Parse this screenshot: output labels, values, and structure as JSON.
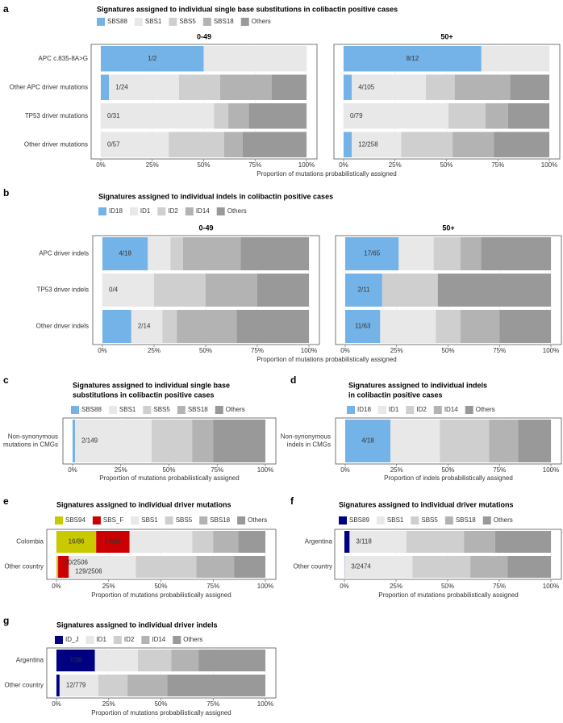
{
  "chart_data": [
    {
      "panel_label": "a",
      "type": "bar",
      "orientation": "horizontal",
      "stacked": true,
      "title": "Signatures assigned to individual single base substitutions in colibactin positive cases",
      "series": [
        {
          "name": "SBS88",
          "color": "#74b3e8"
        },
        {
          "name": "SBS1",
          "color": "#e8e8e8"
        },
        {
          "name": "SBS5",
          "color": "#cfcfcf"
        },
        {
          "name": "SBS18",
          "color": "#b3b3b3"
        },
        {
          "name": "Others",
          "color": "#999999"
        }
      ],
      "categories": [
        "APC c.835-8A>G",
        "Other APC driver mutations",
        "TP53 driver mutations",
        "Other driver mutations"
      ],
      "facets": [
        {
          "title": "0-49",
          "values": [
            [
              50,
              4,
              0,
              0
            ],
            [
              50,
              34,
              55,
              33
            ],
            [
              0,
              20,
              7,
              27
            ],
            [
              0,
              25,
              10,
              9
            ],
            [
              0,
              17,
              28,
              31
            ]
          ],
          "labels": [
            "1/2",
            "1/24",
            "0/31",
            "0/57"
          ]
        },
        {
          "title": "50+",
          "values": [
            [
              67,
              4,
              0,
              4
            ],
            [
              33,
              36,
              51,
              24
            ],
            [
              0,
              14,
              18,
              25
            ],
            [
              0,
              27,
              11,
              20
            ],
            [
              0,
              19,
              20,
              27
            ]
          ],
          "labels": [
            "8/12",
            "4/105",
            "0/79",
            "12/258"
          ]
        }
      ],
      "xlim": [
        0,
        100
      ],
      "xticks": [
        {
          "value": 0,
          "label": "0%"
        },
        {
          "value": 25,
          "label": "25%"
        },
        {
          "value": 50,
          "label": "50%"
        },
        {
          "value": 75,
          "label": "75%"
        },
        {
          "value": 100,
          "label": "100%"
        }
      ],
      "xlabel": "Proportion of mutations probabilistically assigned"
    },
    {
      "panel_label": "b",
      "type": "bar",
      "orientation": "horizontal",
      "stacked": true,
      "title": "Signatures assigned to individual indels in colibactin positive cases",
      "series": [
        {
          "name": "ID18",
          "color": "#74b3e8"
        },
        {
          "name": "ID1",
          "color": "#e8e8e8"
        },
        {
          "name": "ID2",
          "color": "#cfcfcf"
        },
        {
          "name": "ID14",
          "color": "#b3b3b3"
        },
        {
          "name": "Others",
          "color": "#999999"
        }
      ],
      "categories": [
        "APC driver indels",
        "TP53 driver indels",
        "Other driver indels"
      ],
      "facets": [
        {
          "title": "0-49",
          "values": [
            [
              22,
              0,
              14
            ],
            [
              11,
              25,
              15
            ],
            [
              6,
              25,
              7
            ],
            [
              28,
              25,
              29
            ],
            [
              33,
              25,
              35
            ]
          ],
          "labels": [
            "4/18",
            "0/4",
            "2/14"
          ]
        },
        {
          "title": "50+",
          "values": [
            [
              26,
              18,
              17
            ],
            [
              17,
              0,
              27
            ],
            [
              13,
              27,
              12
            ],
            [
              10,
              0,
              19
            ],
            [
              34,
              55,
              25
            ]
          ],
          "labels": [
            "17/65",
            "2/11",
            "11/63"
          ]
        }
      ],
      "xlim": [
        0,
        100
      ],
      "xticks": [
        {
          "value": 0,
          "label": "0%"
        },
        {
          "value": 25,
          "label": "25%"
        },
        {
          "value": 50,
          "label": "50%"
        },
        {
          "value": 75,
          "label": "75%"
        },
        {
          "value": 100,
          "label": "100%"
        }
      ],
      "xlabel": "Proportion of mutations probabilistically assigned"
    },
    {
      "panel_label": "c",
      "type": "bar",
      "orientation": "horizontal",
      "stacked": true,
      "title": [
        "Signatures assigned to individual single base",
        "substitutions in colibactin positive cases"
      ],
      "series": [
        {
          "name": "SBS88",
          "color": "#74b3e8"
        },
        {
          "name": "SBS1",
          "color": "#e8e8e8"
        },
        {
          "name": "SBS5",
          "color": "#cfcfcf"
        },
        {
          "name": "SBS18",
          "color": "#b3b3b3"
        },
        {
          "name": "Others",
          "color": "#999999"
        }
      ],
      "categories": [
        [
          "Non-synonymous",
          "mutations in CMGs"
        ]
      ],
      "facets": [
        {
          "values": [
            [
              1.3
            ],
            [
              39.7
            ],
            [
              21
            ],
            [
              11
            ],
            [
              27
            ]
          ],
          "labels": [
            "2/149"
          ]
        }
      ],
      "xlim": [
        0,
        100
      ],
      "xticks": [
        {
          "value": 0,
          "label": "0%"
        },
        {
          "value": 25,
          "label": "25%"
        },
        {
          "value": 50,
          "label": "50%"
        },
        {
          "value": 75,
          "label": "75%"
        },
        {
          "value": 100,
          "label": "100%"
        }
      ],
      "xlabel": "Proportion of mutations probabilistically assigned"
    },
    {
      "panel_label": "d",
      "type": "bar",
      "orientation": "horizontal",
      "stacked": true,
      "title": [
        "Signatures assigned to individual indels",
        "in colibactin positive cases"
      ],
      "series": [
        {
          "name": "ID18",
          "color": "#74b3e8"
        },
        {
          "name": "ID1",
          "color": "#e8e8e8"
        },
        {
          "name": "ID2",
          "color": "#cfcfcf"
        },
        {
          "name": "ID14",
          "color": "#b3b3b3"
        },
        {
          "name": "Others",
          "color": "#999999"
        }
      ],
      "categories": [
        [
          "Non-synonymous",
          "indels in CMGs"
        ]
      ],
      "facets": [
        {
          "values": [
            [
              22
            ],
            [
              24
            ],
            [
              24
            ],
            [
              14
            ],
            [
              16
            ]
          ],
          "labels": [
            "4/18"
          ]
        }
      ],
      "xlim": [
        0,
        100
      ],
      "xticks": [
        {
          "value": 0,
          "label": "0%"
        },
        {
          "value": 25,
          "label": "25%"
        },
        {
          "value": 50,
          "label": "50%"
        },
        {
          "value": 75,
          "label": "75%"
        },
        {
          "value": 100,
          "label": "100%"
        }
      ],
      "xlabel": "Proportion of indels probabilistically assigned"
    },
    {
      "panel_label": "e",
      "type": "bar",
      "orientation": "horizontal",
      "stacked": true,
      "title": "Signatures assigned to individual driver mutations",
      "series": [
        {
          "name": "SBS94",
          "color": "#c9c900"
        },
        {
          "name": "SBS_F",
          "color": "#cc0000"
        },
        {
          "name": "SBS1",
          "color": "#e8e8e8"
        },
        {
          "name": "SBS5",
          "color": "#cfcfcf"
        },
        {
          "name": "SBS18",
          "color": "#b3b3b3"
        },
        {
          "name": "Others",
          "color": "#999999"
        }
      ],
      "categories": [
        "Colombia",
        "Other country"
      ],
      "facets": [
        {
          "values": [
            [
              19,
              0.8
            ],
            [
              16,
              5.1
            ],
            [
              30,
              32.1
            ],
            [
              10,
              29
            ],
            [
              12,
              18
            ],
            [
              13,
              15
            ]
          ],
          "labels": [
            "16/86",
            "20/2506"
          ],
          "labels2": [
            "14/86",
            "129/2506"
          ]
        }
      ],
      "xlim": [
        0,
        100
      ],
      "xticks": [
        {
          "value": 0,
          "label": "0%"
        },
        {
          "value": 25,
          "label": "25%"
        },
        {
          "value": 50,
          "label": "50%"
        },
        {
          "value": 75,
          "label": "75%"
        },
        {
          "value": 100,
          "label": "100%"
        }
      ],
      "xlabel": "Proportion of mutations probabilistically assigned"
    },
    {
      "panel_label": "f",
      "type": "bar",
      "orientation": "horizontal",
      "stacked": true,
      "title": "Signatures assigned to individual driver mutations",
      "series": [
        {
          "name": "SBS89",
          "color": "#000080"
        },
        {
          "name": "SBS1",
          "color": "#e8e8e8"
        },
        {
          "name": "SBS5",
          "color": "#cfcfcf"
        },
        {
          "name": "SBS18",
          "color": "#b3b3b3"
        },
        {
          "name": "Others",
          "color": "#999999"
        }
      ],
      "categories": [
        "Argentina",
        "Other country"
      ],
      "facets": [
        {
          "values": [
            [
              2.5,
              0.1
            ],
            [
              27.5,
              32.9
            ],
            [
              28,
              28
            ],
            [
              15,
              18
            ],
            [
              27,
              21
            ]
          ],
          "labels": [
            "3/118",
            "3/2474"
          ]
        }
      ],
      "xlim": [
        0,
        100
      ],
      "xticks": [
        {
          "value": 0,
          "label": "0%"
        },
        {
          "value": 25,
          "label": "25%"
        },
        {
          "value": 50,
          "label": "50%"
        },
        {
          "value": 75,
          "label": "75%"
        },
        {
          "value": 100,
          "label": "100%"
        }
      ],
      "xlabel": "Proportion of mutations probabilistically assigned"
    },
    {
      "panel_label": "g",
      "type": "bar",
      "orientation": "horizontal",
      "stacked": true,
      "title": "Signatures assigned to individual driver indels",
      "series": [
        {
          "name": "ID_J",
          "color": "#000080"
        },
        {
          "name": "ID1",
          "color": "#e8e8e8"
        },
        {
          "name": "ID2",
          "color": "#cfcfcf"
        },
        {
          "name": "ID14",
          "color": "#b3b3b3"
        },
        {
          "name": "Others",
          "color": "#999999"
        }
      ],
      "categories": [
        "Argentina",
        "Other country"
      ],
      "facets": [
        {
          "values": [
            [
              18.4,
              1.5
            ],
            [
              20.6,
              18.5
            ],
            [
              16,
              14
            ],
            [
              13,
              19
            ],
            [
              32,
              47
            ]
          ],
          "labels": [
            "7/38",
            "12/779"
          ]
        }
      ],
      "xlim": [
        0,
        100
      ],
      "xticks": [
        {
          "value": 0,
          "label": "0%"
        },
        {
          "value": 25,
          "label": "25%"
        },
        {
          "value": 50,
          "label": "50%"
        },
        {
          "value": 75,
          "label": "75%"
        },
        {
          "value": 100,
          "label": "100%"
        }
      ],
      "xlabel": "Proportion of mutations probabilistically assigned"
    }
  ]
}
